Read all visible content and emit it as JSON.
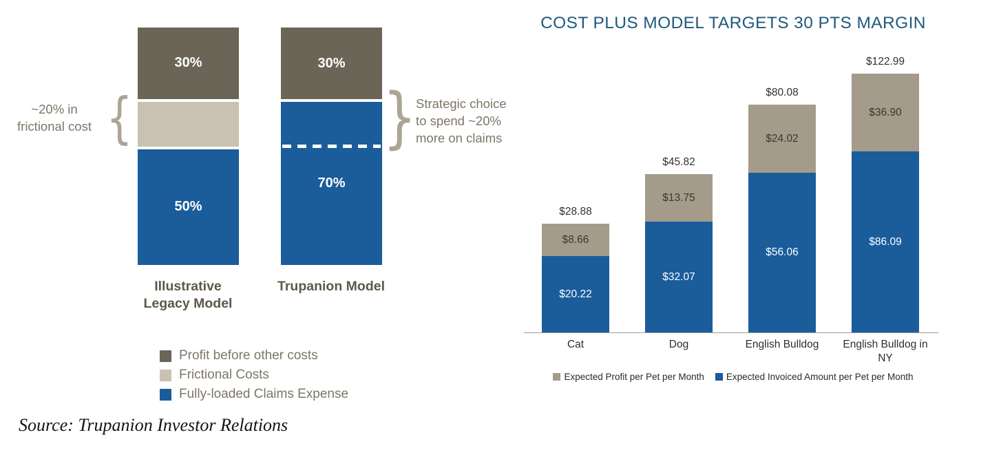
{
  "source_note": "Source: Trupanion Investor Relations",
  "colors": {
    "blue": "#1b5c9b",
    "dark_olive": "#6a6557",
    "light_tan": "#c9c2b2",
    "tan": "#a59b8b",
    "title_blue": "#1e5a7a",
    "annotation_gray": "#7d7669"
  },
  "left_chart": {
    "bars": [
      {
        "label": "Illustrative\nLegacy Model",
        "segments": [
          {
            "name": "Profit before other costs",
            "value": 30,
            "label": "30%"
          },
          {
            "name": "Frictional Costs",
            "value": 20,
            "label": ""
          },
          {
            "name": "Fully-loaded Claims Expense",
            "value": 50,
            "label": "50%"
          }
        ]
      },
      {
        "label": "Trupanion Model",
        "segments": [
          {
            "name": "Profit before other costs",
            "value": 30,
            "label": "30%"
          },
          {
            "name": "Fully-loaded Claims Expense",
            "value": 70,
            "label": "70%"
          }
        ]
      }
    ],
    "annotation_left": "~20% in\nfrictional cost",
    "annotation_right": "Strategic choice to spend ~20% more on claims",
    "icons": {
      "left_brace": "{",
      "right_brace": "}"
    },
    "legend": [
      {
        "label": "Profit before other costs",
        "color": "#6a6557"
      },
      {
        "label": "Frictional Costs",
        "color": "#c9c2b2"
      },
      {
        "label": "Fully-loaded Claims Expense",
        "color": "#1b5c9b"
      }
    ]
  },
  "right_chart": {
    "title": "COST PLUS MODEL TARGETS 30 PTS MARGIN",
    "bars": [
      {
        "category": "Cat",
        "total_label": "$28.88",
        "profit_label": "$8.66",
        "invoiced_label": "$20.22"
      },
      {
        "category": "Dog",
        "total_label": "$45.82",
        "profit_label": "$13.75",
        "invoiced_label": "$32.07"
      },
      {
        "category": "English Bulldog",
        "total_label": "$80.08",
        "profit_label": "$24.02",
        "invoiced_label": "$56.06"
      },
      {
        "category": "English Bulldog in NY",
        "total_label": "$122.99",
        "profit_label": "$36.90",
        "invoiced_label": "$86.09"
      }
    ],
    "legend": [
      {
        "label": "Expected Profit per Pet per Month",
        "color": "#a59b8b"
      },
      {
        "label": "Expected Invoiced Amount per Pet per Month",
        "color": "#1b5c9b"
      }
    ]
  },
  "chart_data": [
    {
      "type": "bar",
      "stacked": true,
      "title": "",
      "categories": [
        "Illustrative Legacy Model",
        "Trupanion Model"
      ],
      "series": [
        {
          "name": "Fully-loaded Claims Expense",
          "values": [
            50,
            70
          ],
          "color": "#1b5c9b"
        },
        {
          "name": "Frictional Costs",
          "values": [
            20,
            0
          ],
          "color": "#c9c2b2"
        },
        {
          "name": "Profit before other costs",
          "values": [
            30,
            30
          ],
          "color": "#6a6557"
        }
      ],
      "unit": "%",
      "ylim": [
        0,
        100
      ],
      "grid": false,
      "legend_position": "bottom",
      "annotations": [
        "~20% in frictional cost",
        "Strategic choice to spend ~20% more on claims"
      ]
    },
    {
      "type": "bar",
      "stacked": true,
      "title": "COST PLUS MODEL TARGETS 30 PTS MARGIN",
      "categories": [
        "Cat",
        "Dog",
        "English Bulldog",
        "English Bulldog in NY"
      ],
      "series": [
        {
          "name": "Expected Invoiced Amount per Pet per Month",
          "values": [
            20.22,
            32.07,
            56.06,
            86.09
          ],
          "color": "#1b5c9b"
        },
        {
          "name": "Expected Profit per Pet per Month",
          "values": [
            8.66,
            13.75,
            24.02,
            36.9
          ],
          "color": "#a59b8b"
        }
      ],
      "totals": [
        28.88,
        45.82,
        80.08,
        122.99
      ],
      "unit": "USD per pet per month",
      "value_labels": true,
      "grid": false,
      "y_axis_visible": false,
      "legend_position": "bottom"
    }
  ]
}
